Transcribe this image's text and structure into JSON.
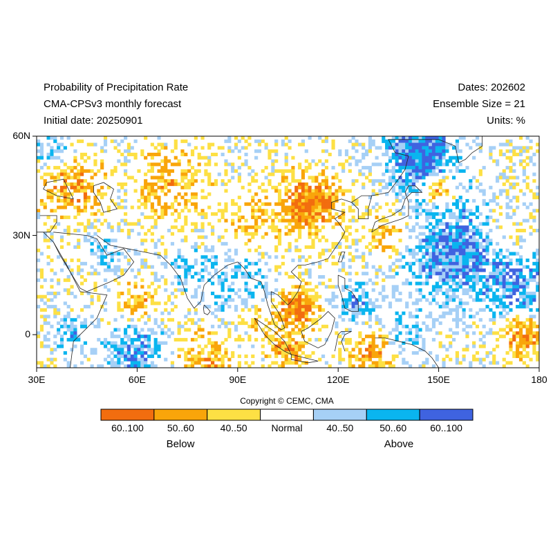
{
  "header": {
    "title_line1": "Probability of Precipitation Rate",
    "title_line2": "CMA-CPSv3 monthly forecast",
    "title_line3": "Initial date: 20250901",
    "dates": "Dates: 202602",
    "ensemble": "Ensemble Size = 21",
    "units": "Units: %"
  },
  "map": {
    "lon_range": [
      30,
      180
    ],
    "lat_range": [
      -10,
      60
    ],
    "x_ticks": [
      "30E",
      "60E",
      "90E",
      "120E",
      "150E",
      "180"
    ],
    "y_ticks": [
      "60N",
      "30N",
      "0"
    ],
    "x_tick_values": [
      30,
      60,
      90,
      120,
      150,
      180
    ],
    "y_tick_values": [
      60,
      30,
      0
    ]
  },
  "footer": {
    "copyright": "Copyright © CEMC, CMA"
  },
  "colorbar": {
    "bins": [
      {
        "label": "60..100",
        "color": "#f26d0f"
      },
      {
        "label": "50..60",
        "color": "#f9a50a"
      },
      {
        "label": "40..50",
        "color": "#fde044"
      },
      {
        "label": "Normal",
        "color": "#ffffff"
      },
      {
        "label": "40..50",
        "color": "#a6d0f6"
      },
      {
        "label": "50..60",
        "color": "#0ab5ef"
      },
      {
        "label": "60..100",
        "color": "#3f63e0"
      }
    ],
    "below_label": "Below",
    "above_label": "Above"
  }
}
